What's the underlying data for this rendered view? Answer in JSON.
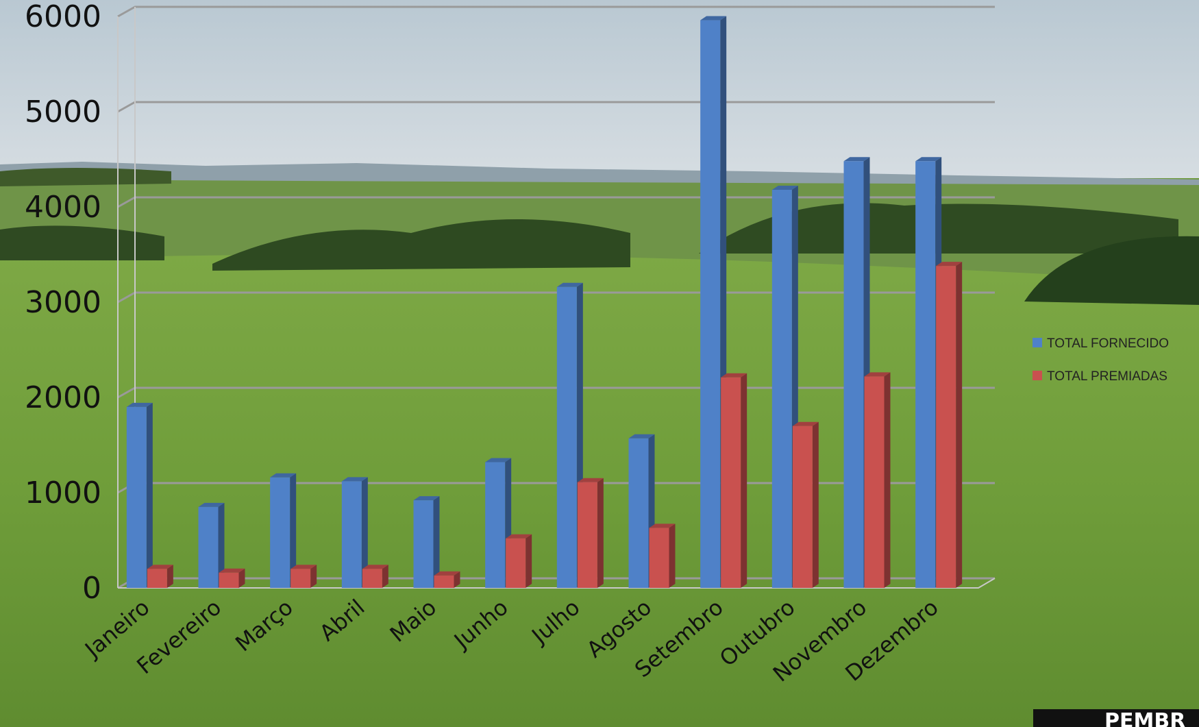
{
  "chart_data": {
    "type": "bar",
    "categories": [
      "Janeiro",
      "Fevereiro",
      "Março",
      "Abril",
      "Maio",
      "Junho",
      "Julho",
      "Agosto",
      "Setembro",
      "Outubro",
      "Novembro",
      "Dezembro"
    ],
    "series": [
      {
        "name": "TOTAL FORNECIDO",
        "color": "#4f81c8",
        "values": [
          1900,
          850,
          1160,
          1120,
          920,
          1320,
          3160,
          1570,
          5960,
          4180,
          4480,
          4480
        ]
      },
      {
        "name": "TOTAL PREMIADAS",
        "color": "#c9514f",
        "values": [
          200,
          160,
          200,
          200,
          130,
          520,
          1110,
          630,
          2210,
          1700,
          2220,
          3380
        ]
      }
    ],
    "yticks": [
      0,
      1000,
      2000,
      3000,
      4000,
      5000,
      6000
    ],
    "ylim": [
      0,
      6000
    ],
    "legend_position": "right",
    "grid": true
  },
  "corner_label": "PEMBR"
}
